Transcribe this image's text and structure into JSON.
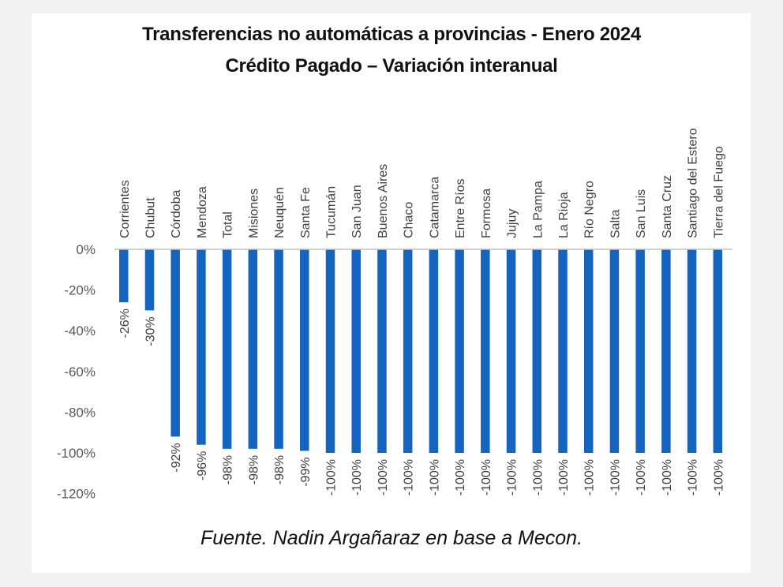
{
  "chart_data": {
    "type": "bar",
    "title": "Transferencias no automáticas a provincias - Enero 2024",
    "subtitle": "Crédito Pagado – Variación interanual",
    "xlabel": "",
    "ylabel": "",
    "ylim": [
      -120,
      0
    ],
    "yticks": [
      0,
      -20,
      -40,
      -60,
      -80,
      -100,
      -120
    ],
    "ytick_labels": [
      "0%",
      "-20%",
      "-40%",
      "-60%",
      "-80%",
      "-100%",
      "-120%"
    ],
    "grid": false,
    "legend": "none",
    "categories": [
      "Corrientes",
      "Chubut",
      "Córdoba",
      "Mendoza",
      "Total",
      "Misiones",
      "Neuquén",
      "Santa Fe",
      "Tucumán",
      "San Juan",
      "Buenos Aires",
      "Chaco",
      "Catamarca",
      "Entre Ríos",
      "Formosa",
      "Jujuy",
      "La Pampa",
      "La Rioja",
      "Río Negro",
      "Salta",
      "San Luis",
      "Santa Cruz",
      "Santiago del Estero",
      "Tierra del Fuego"
    ],
    "values": [
      -26,
      -30,
      -92,
      -96,
      -98,
      -98,
      -98,
      -99,
      -100,
      -100,
      -100,
      -100,
      -100,
      -100,
      -100,
      -100,
      -100,
      -100,
      -100,
      -100,
      -100,
      -100,
      -100,
      -100
    ],
    "data_labels": [
      "-26%",
      "-30%",
      "-92%",
      "-96%",
      "-98%",
      "-98%",
      "-98%",
      "-99%",
      "-100%",
      "-100%",
      "-100%",
      "-100%",
      "-100%",
      "-100%",
      "-100%",
      "-100%",
      "-100%",
      "-100%",
      "-100%",
      "-100%",
      "-100%",
      "-100%",
      "-100%",
      "-100%"
    ],
    "bar_color": "#1565c0",
    "axis_color": "#bfbfbf"
  },
  "footer": {
    "source": "Fuente. Nadin Argañaraz en base a Mecon."
  }
}
